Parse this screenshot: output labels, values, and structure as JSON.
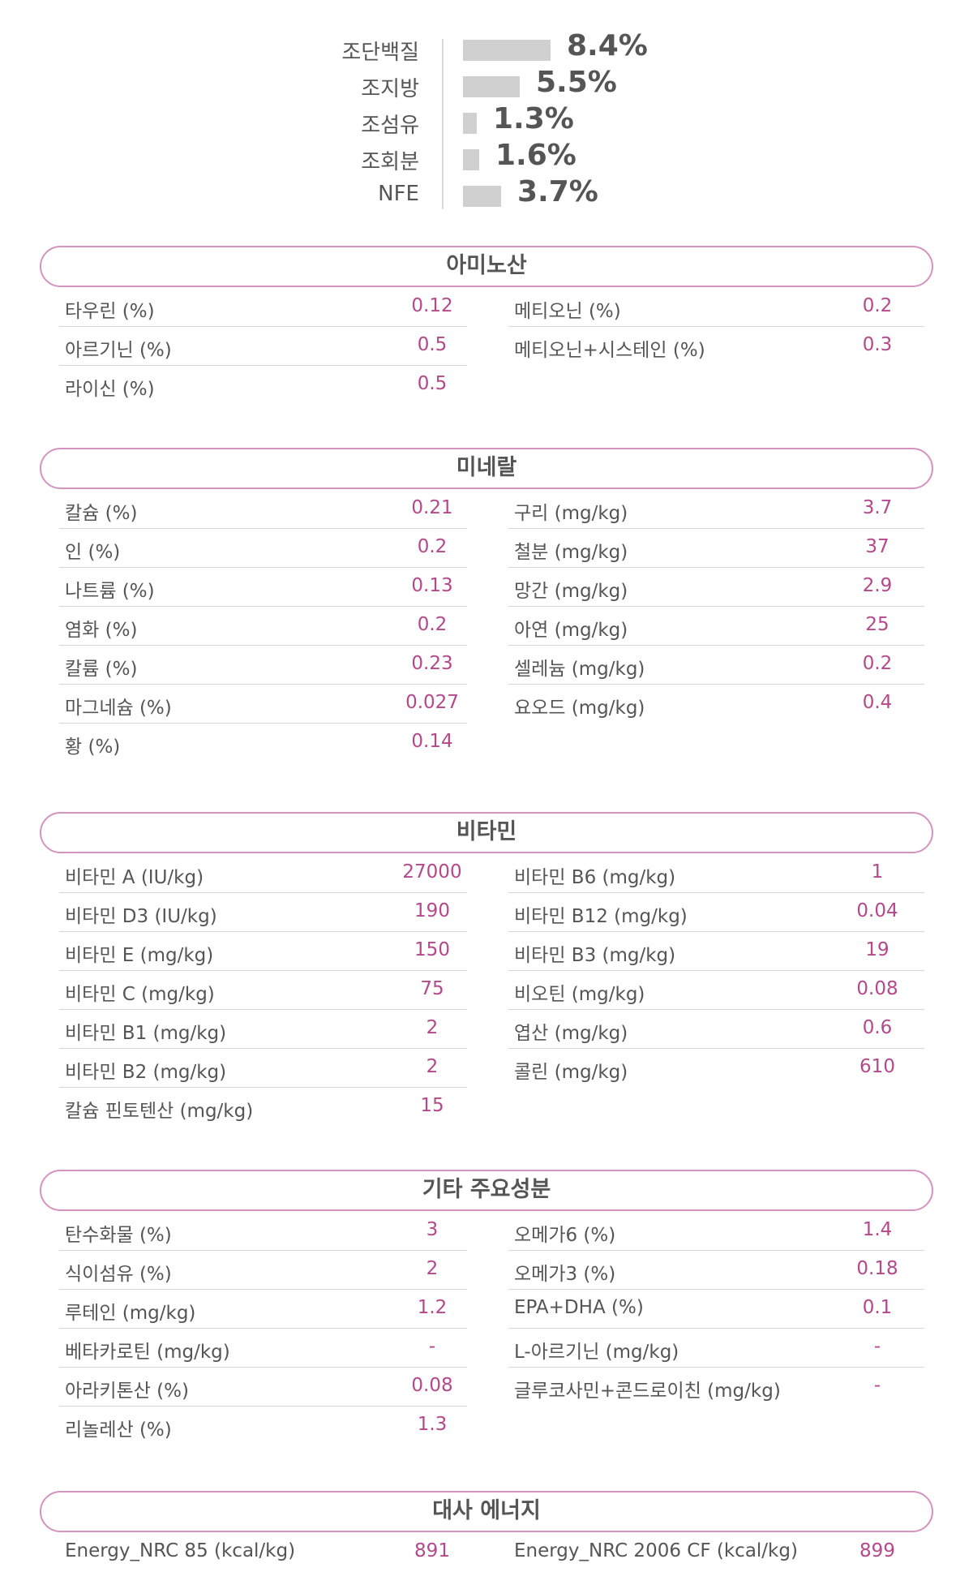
{
  "composition": {
    "divider": true,
    "items": [
      {
        "label": "조단백질",
        "value": "8.4%",
        "percent": 8.4
      },
      {
        "label": "조지방",
        "value": "5.5%",
        "percent": 5.5
      },
      {
        "label": "조섬유",
        "value": "1.3%",
        "percent": 1.3
      },
      {
        "label": "조회분",
        "value": "1.6%",
        "percent": 1.6
      },
      {
        "label": "NFE",
        "value": "3.7%",
        "percent": 3.7
      }
    ]
  },
  "colors": {
    "accent": "#b5488b",
    "header_border": "#d593c0",
    "bar": "#d0d0d0",
    "text": "#555555"
  },
  "sections": [
    {
      "title": "아미노산",
      "left": [
        {
          "label": "타우린 (%)",
          "value": "0.12"
        },
        {
          "label": "아르기닌 (%)",
          "value": "0.5"
        },
        {
          "label": "라이신 (%)",
          "value": "0.5"
        }
      ],
      "right": [
        {
          "label": "메티오닌 (%)",
          "value": "0.2"
        },
        {
          "label": "메티오닌+시스테인 (%)",
          "value": "0.3"
        }
      ]
    },
    {
      "title": "미네랄",
      "left": [
        {
          "label": "칼슘 (%)",
          "value": "0.21"
        },
        {
          "label": "인 (%)",
          "value": "0.2"
        },
        {
          "label": "나트륨 (%)",
          "value": "0.13"
        },
        {
          "label": "염화 (%)",
          "value": "0.2"
        },
        {
          "label": "칼륨 (%)",
          "value": "0.23"
        },
        {
          "label": "마그네슘 (%)",
          "value": "0.027"
        },
        {
          "label": "황 (%)",
          "value": "0.14"
        }
      ],
      "right": [
        {
          "label": "구리 (mg/kg)",
          "value": "3.7"
        },
        {
          "label": "철분 (mg/kg)",
          "value": "37"
        },
        {
          "label": "망간 (mg/kg)",
          "value": "2.9"
        },
        {
          "label": "아연 (mg/kg)",
          "value": "25"
        },
        {
          "label": "셀레늄 (mg/kg)",
          "value": "0.2"
        },
        {
          "label": "요오드 (mg/kg)",
          "value": "0.4"
        }
      ]
    },
    {
      "title": "비타민",
      "left": [
        {
          "label": "비타민 A (IU/kg)",
          "value": "27000"
        },
        {
          "label": "비타민 D3 (IU/kg)",
          "value": "190"
        },
        {
          "label": "비타민 E (mg/kg)",
          "value": "150"
        },
        {
          "label": "비타민 C (mg/kg)",
          "value": "75"
        },
        {
          "label": "비타민 B1 (mg/kg)",
          "value": "2"
        },
        {
          "label": "비타민 B2 (mg/kg)",
          "value": "2"
        },
        {
          "label": "칼슘 핀토텐산 (mg/kg)",
          "value": "15"
        }
      ],
      "right": [
        {
          "label": "비타민 B6 (mg/kg)",
          "value": "1"
        },
        {
          "label": "비타민 B12 (mg/kg)",
          "value": "0.04"
        },
        {
          "label": "비타민 B3 (mg/kg)",
          "value": "19"
        },
        {
          "label": "비오틴 (mg/kg)",
          "value": "0.08"
        },
        {
          "label": "엽산 (mg/kg)",
          "value": "0.6"
        },
        {
          "label": "콜린 (mg/kg)",
          "value": "610"
        }
      ]
    },
    {
      "title": "기타 주요성분",
      "left": [
        {
          "label": "탄수화물 (%)",
          "value": "3"
        },
        {
          "label": "식이섬유 (%)",
          "value": "2"
        },
        {
          "label": "루테인 (mg/kg)",
          "value": "1.2"
        },
        {
          "label": "베타카로틴 (mg/kg)",
          "value": "-"
        },
        {
          "label": "아라키톤산 (%)",
          "value": "0.08"
        },
        {
          "label": "리놀레산 (%)",
          "value": "1.3"
        }
      ],
      "right": [
        {
          "label": "오메가6 (%)",
          "value": "1.4"
        },
        {
          "label": "오메가3 (%)",
          "value": "0.18"
        },
        {
          "label": "EPA+DHA (%)",
          "value": "0.1"
        },
        {
          "label": "L-아르기닌 (mg/kg)",
          "value": "-"
        },
        {
          "label": "글루코사민+콘드로이친 (mg/kg)",
          "value": "-"
        }
      ]
    },
    {
      "title": "대사 에너지",
      "left": [
        {
          "label": "Energy_NRC 85 (kcal/kg)",
          "value": "891"
        }
      ],
      "right": [
        {
          "label": "Energy_NRC 2006 CF (kcal/kg)",
          "value": "899"
        }
      ]
    }
  ]
}
